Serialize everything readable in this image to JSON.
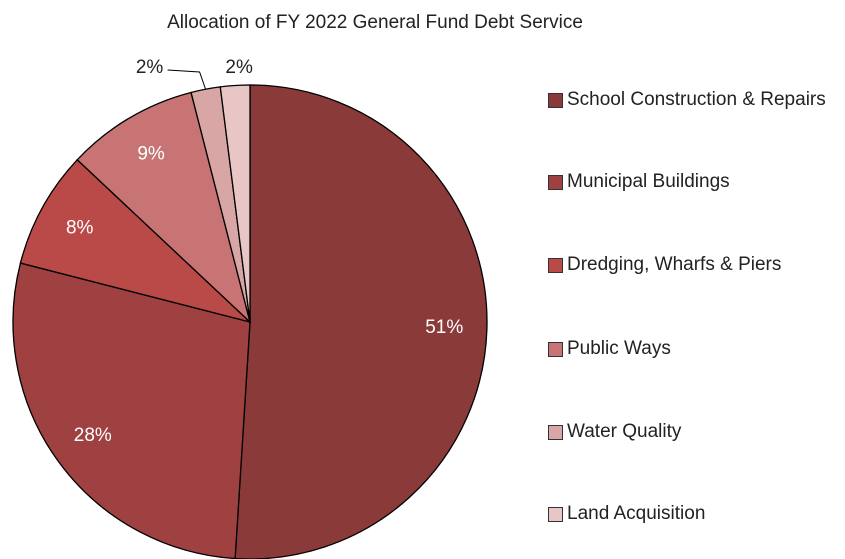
{
  "chart_data": {
    "type": "pie",
    "title": "Allocation of FY 2022 General Fund Debt Service",
    "categories": [
      "School Construction & Repairs",
      "Municipal Buildings",
      "Dredging, Wharfs & Piers",
      "Public Ways",
      "Water Quality",
      "Land Acquisition"
    ],
    "values": [
      51,
      28,
      8,
      9,
      2,
      2
    ],
    "value_labels": [
      "51%",
      "28%",
      "8%",
      "9%",
      "2%",
      "2%"
    ],
    "colors": [
      "#8b3a3a",
      "#a04141",
      "#b94a48",
      "#c87474",
      "#d9a6a6",
      "#e8c6c6"
    ],
    "legend": "right"
  }
}
